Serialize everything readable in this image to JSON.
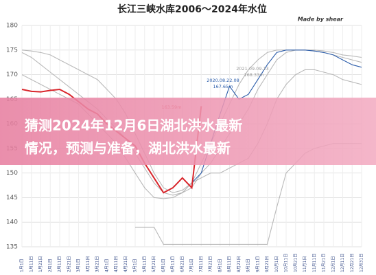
{
  "chart_data": {
    "type": "line",
    "title": "长江三峡水库2006～2024年水位",
    "subtitle": "Made by shear",
    "categories": [
      "1月1日",
      "1月11日",
      "1月21日",
      "2月1日",
      "2月11日",
      "2月21日",
      "3月1日",
      "3月11日",
      "3月21日",
      "4月1日",
      "4月11日",
      "4月21日",
      "5月1日",
      "5月11日",
      "5月21日",
      "6月1日",
      "6月11日",
      "6月21日",
      "7月1日",
      "7月11日",
      "7月21日",
      "8月1日",
      "8月11日",
      "8月21日",
      "9月1日",
      "9月11日",
      "9月21日",
      "10月1日",
      "10月11日",
      "10月21日",
      "11月1日",
      "11月11日",
      "11月21日",
      "12月1日",
      "12月11日",
      "12月21日",
      "12月31日"
    ],
    "ylim": [
      135,
      180
    ],
    "yticks": [
      135,
      140,
      145,
      150,
      155,
      160,
      165,
      170,
      175,
      180
    ],
    "grid": true,
    "series": [
      {
        "color": "#a8a8a8",
        "values": [
          174.5,
          173.5,
          172,
          170.5,
          169,
          167.5,
          166,
          164.5,
          163,
          161,
          159,
          157,
          154,
          151,
          148,
          146,
          145.5,
          146,
          147,
          150,
          152,
          155,
          158,
          160,
          163,
          167,
          170,
          173,
          174.5,
          175,
          175,
          174.8,
          174.5,
          174,
          173.5,
          173,
          172.5
        ]
      },
      {
        "color": "#a8a8a8",
        "values": [
          170,
          169,
          168,
          167,
          166,
          165,
          164,
          162,
          160,
          158,
          156,
          153,
          150,
          147,
          145,
          144.8,
          145,
          146,
          148,
          149,
          150,
          150,
          151,
          152,
          153,
          156,
          160,
          165,
          168,
          170,
          171,
          171,
          170.5,
          170,
          169,
          168.5,
          168
        ]
      },
      {
        "color": "#a8a8a8",
        "values": [
          null,
          null,
          null,
          null,
          null,
          null,
          null,
          null,
          null,
          null,
          null,
          null,
          139,
          139,
          139,
          135.5,
          135.5,
          135.5,
          135.5,
          135.5,
          135.5,
          135.5,
          135.5,
          135.5,
          135.5,
          135.5,
          135.5,
          143,
          150,
          152,
          154,
          155,
          155.5,
          156,
          156,
          156,
          156
        ]
      },
      {
        "color": "#a8a8a8",
        "values": [
          175,
          174.8,
          174.5,
          174,
          173,
          172,
          171,
          170,
          169,
          167,
          165,
          162,
          158,
          154,
          150,
          147,
          146,
          146.5,
          148,
          152,
          156,
          160,
          164,
          168,
          171,
          173,
          174.5,
          175,
          175,
          175,
          175,
          175,
          174.8,
          174.5,
          174,
          173.8,
          173.5
        ]
      },
      {
        "color": "#2a5caa",
        "values": [
          null,
          null,
          null,
          null,
          null,
          null,
          null,
          null,
          null,
          null,
          null,
          null,
          null,
          null,
          null,
          null,
          null,
          null,
          148,
          150,
          156,
          162,
          167.65,
          165,
          166,
          169,
          172,
          174.5,
          175,
          175,
          175,
          174.8,
          174.5,
          174,
          173,
          172,
          171.5
        ]
      },
      {
        "color": "#d9262c",
        "values": [
          167,
          166.6,
          166.5,
          166.8,
          167,
          166,
          164.5,
          163,
          162,
          160,
          158.5,
          157,
          155.5,
          152,
          149,
          146,
          147,
          149,
          147,
          163.59,
          null,
          null,
          null,
          null,
          null,
          null,
          null,
          null,
          null,
          null,
          null,
          null,
          null,
          null,
          null,
          null,
          null
        ]
      }
    ],
    "annotations": [
      "163.59m",
      "2020.08.22.08",
      "167.65m",
      "2021.09.09.13",
      "168.33m"
    ]
  },
  "banner": {
    "lines": [
      "猜测2024年12月6日湖北洪水最新",
      "情况，预测与准备，湖北洪水最新"
    ]
  }
}
